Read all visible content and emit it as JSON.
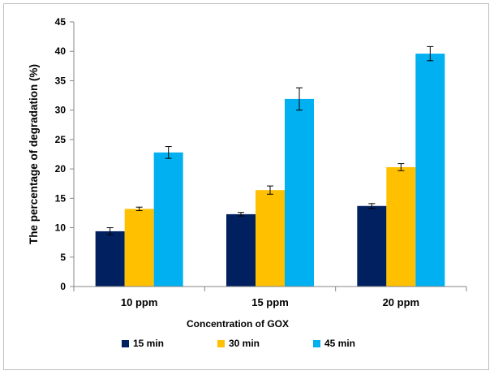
{
  "chart_data": {
    "type": "bar",
    "categories": [
      "10 ppm",
      "15 ppm",
      "20 ppm"
    ],
    "series": [
      {
        "name": "15 min",
        "color": "#002060",
        "values": [
          9.4,
          12.3,
          13.7
        ],
        "errors": [
          0.6,
          0.3,
          0.4
        ]
      },
      {
        "name": "30 min",
        "color": "#FFC000",
        "values": [
          13.2,
          16.4,
          20.3
        ],
        "errors": [
          0.3,
          0.7,
          0.6
        ]
      },
      {
        "name": "45 min",
        "color": "#00B0F0",
        "values": [
          22.8,
          31.9,
          39.6
        ],
        "errors": [
          1.0,
          1.9,
          1.2
        ]
      }
    ],
    "xlabel": "Concentration of GOX",
    "ylabel": "The percentage of degradation (%)",
    "ylim": [
      0,
      45
    ],
    "yticks": [
      0,
      5,
      10,
      15,
      20,
      25,
      30,
      35,
      40,
      45
    ],
    "grid": false,
    "legend_position": "bottom"
  }
}
